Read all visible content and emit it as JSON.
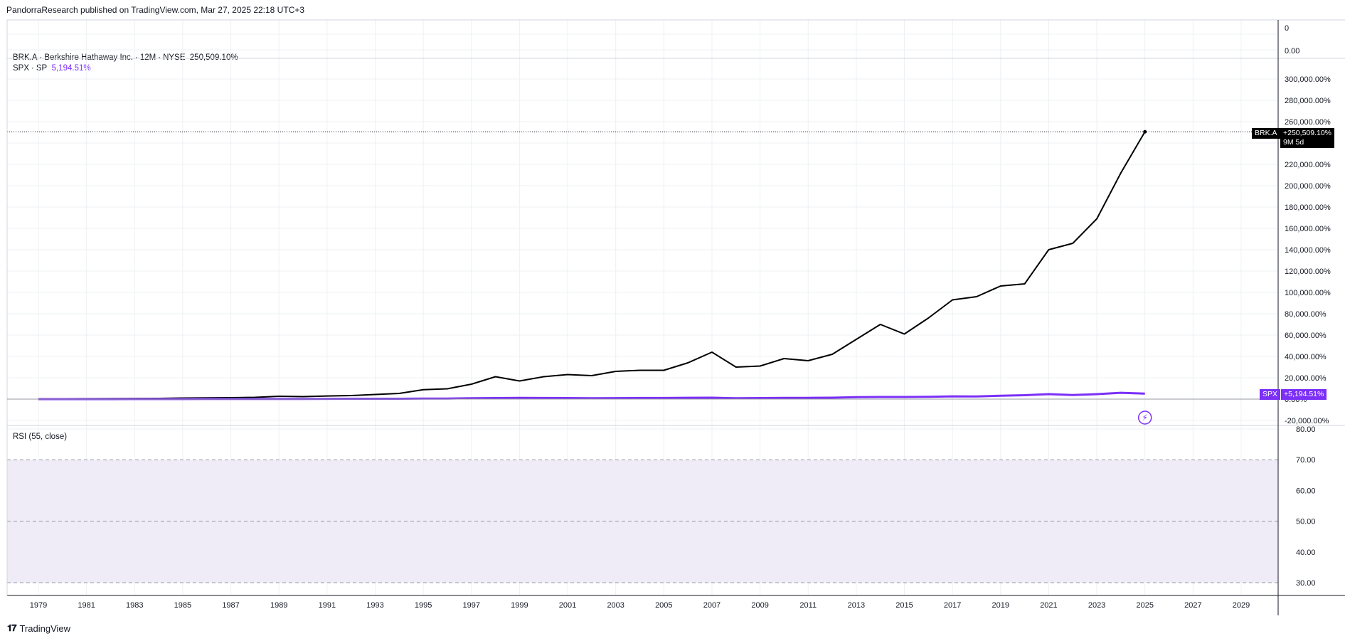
{
  "header": {
    "text": "PandorraResearch published on TradingView.com, Mar 27, 2025 22:18 UTC+3"
  },
  "legend": {
    "main_symbol": "BRK.A",
    "main_name": "Berkshire Hathaway Inc.",
    "main_interval": "12M",
    "main_exchange": "NYSE",
    "main_value": "250,509.10%",
    "compare_symbol": "SPX",
    "compare_exchange": "SP",
    "compare_value": "5,194.51%"
  },
  "top_pane_axis": {
    "labels": [
      "0",
      "0.00"
    ]
  },
  "price_axis_labels": [
    "300,000.00%",
    "280,000.00%",
    "260,000.00%",
    "220,000.00%",
    "200,000.00%",
    "180,000.00%",
    "160,000.00%",
    "140,000.00%",
    "120,000.00%",
    "100,000.00%",
    "80,000.00%",
    "60,000.00%",
    "40,000.00%",
    "20,000.00%",
    "0.00%",
    "-20,000.00%"
  ],
  "last_tags": {
    "brk_symbol": "BRK.A",
    "brk_value": "+250,509.10%",
    "brk_countdown": "9M 5d",
    "spx_symbol": "SPX",
    "spx_value": "+5,194.51%"
  },
  "rsi": {
    "label": "RSI (55, close)",
    "axis_labels": [
      "80.00",
      "70.00",
      "60.00",
      "50.00",
      "40.00",
      "30.00"
    ]
  },
  "time_axis_labels": [
    "1979",
    "1981",
    "1983",
    "1985",
    "1987",
    "1989",
    "1991",
    "1993",
    "1995",
    "1997",
    "1999",
    "2001",
    "2003",
    "2005",
    "2007",
    "2009",
    "2011",
    "2013",
    "2015",
    "2017",
    "2019",
    "2021",
    "2023",
    "2025",
    "2027",
    "2029"
  ],
  "footer": {
    "brand": "TradingView"
  },
  "colors": {
    "brk": "#000000",
    "spx": "#7b2ff7",
    "rsi_band": "#efecf7",
    "grid": "#eef0f3"
  },
  "chart_data": {
    "type": "line",
    "x_unit": "year",
    "y_unit": "percent",
    "ylim": [
      -20000,
      300000
    ],
    "xlim": [
      1979,
      2030
    ],
    "series": [
      {
        "name": "BRK.A",
        "x": [
          1979,
          1980,
          1981,
          1982,
          1983,
          1984,
          1985,
          1986,
          1987,
          1988,
          1989,
          1990,
          1991,
          1992,
          1993,
          1994,
          1995,
          1996,
          1997,
          1998,
          1999,
          2000,
          2001,
          2002,
          2003,
          2004,
          2005,
          2006,
          2007,
          2008,
          2009,
          2010,
          2011,
          2012,
          2013,
          2014,
          2015,
          2016,
          2017,
          2018,
          2019,
          2020,
          2021,
          2022,
          2023,
          2024,
          2025
        ],
        "values": [
          0,
          300,
          400,
          500,
          600,
          700,
          1000,
          1200,
          1300,
          1700,
          2700,
          2300,
          2900,
          3300,
          4300,
          5300,
          8800,
          9700,
          14000,
          21000,
          17000,
          21000,
          23000,
          22000,
          26000,
          27000,
          27000,
          34000,
          44000,
          30000,
          31000,
          38000,
          36000,
          42000,
          56000,
          70000,
          61000,
          76000,
          93000,
          96000,
          106000,
          108000,
          140000,
          146000,
          169000,
          212000,
          250509
        ]
      },
      {
        "name": "SPX",
        "x": [
          1979,
          1980,
          1981,
          1982,
          1983,
          1984,
          1985,
          1986,
          1987,
          1988,
          1989,
          1990,
          1991,
          1992,
          1993,
          1994,
          1995,
          1996,
          1997,
          1998,
          1999,
          2000,
          2001,
          2002,
          2003,
          2004,
          2005,
          2006,
          2007,
          2008,
          2009,
          2010,
          2011,
          2012,
          2013,
          2014,
          2015,
          2016,
          2017,
          2018,
          2019,
          2020,
          2021,
          2022,
          2023,
          2024,
          2025
        ],
        "values": [
          0,
          10,
          20,
          20,
          50,
          50,
          100,
          130,
          140,
          160,
          220,
          200,
          280,
          300,
          330,
          330,
          450,
          560,
          780,
          1000,
          1200,
          1100,
          980,
          830,
          950,
          1050,
          1100,
          1250,
          1350,
          800,
          1000,
          1150,
          1200,
          1350,
          1800,
          2000,
          2000,
          2200,
          2600,
          2500,
          3200,
          3700,
          4700,
          3800,
          4700,
          5900,
          5194.51
        ]
      }
    ],
    "rsi": {
      "name": "RSI (55, close)",
      "ylim": [
        29,
        80.5
      ],
      "overbought": 70,
      "oversold": 30,
      "middle": 50
    }
  }
}
